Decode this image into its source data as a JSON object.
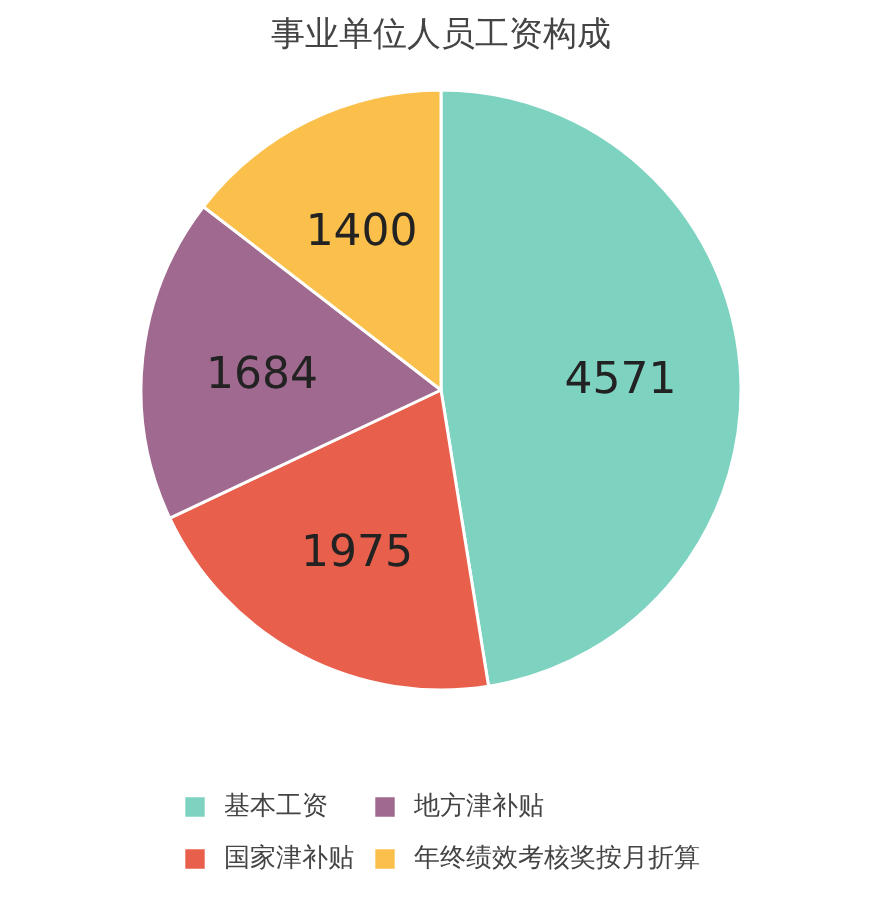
{
  "chart_data": {
    "type": "pie",
    "title": "事业单位人员工资构成",
    "categories": [
      "基本工资",
      "国家津补贴",
      "地方津补贴",
      "年终绩效考核奖按月折算"
    ],
    "values": [
      4571,
      1975,
      1684,
      1400
    ],
    "colors": [
      "#7dd3c0",
      "#e8604c",
      "#a0698f",
      "#fbc04b"
    ],
    "data_labels": true,
    "legend": "bottom"
  }
}
